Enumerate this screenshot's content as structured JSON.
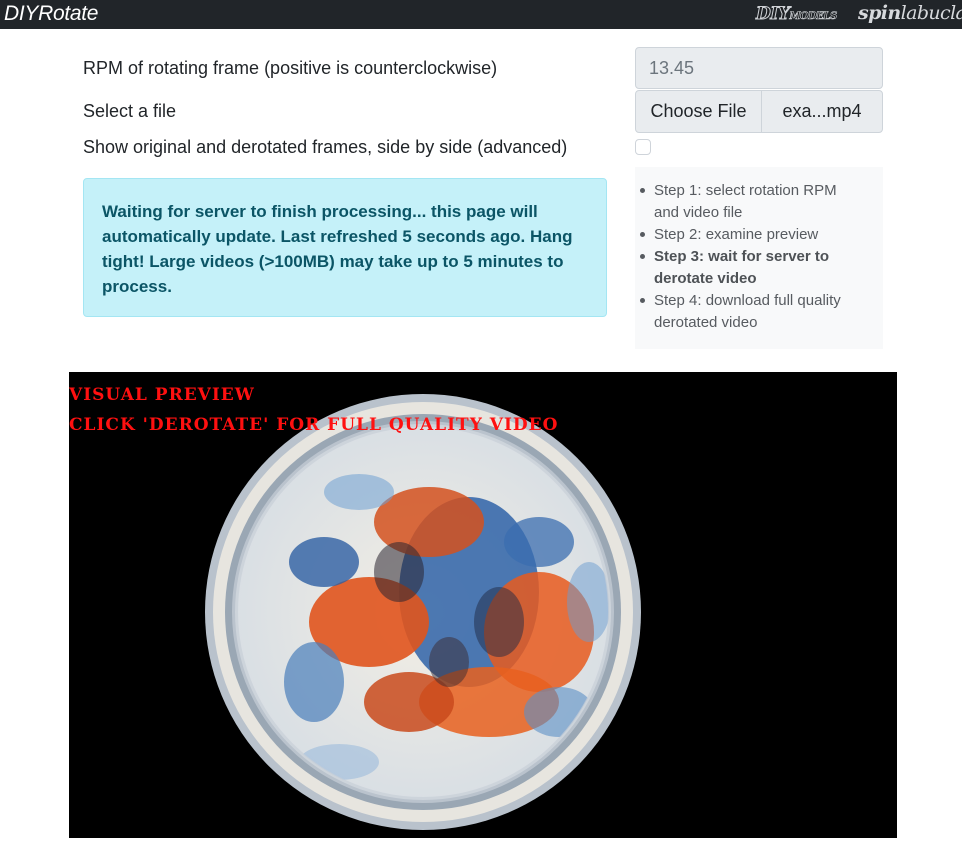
{
  "header": {
    "brand": "DIYRotate",
    "logo_diy_main": "DIY",
    "logo_diy_small": "MODELS",
    "logo_spinlab_a": "spin",
    "logo_spinlab_b": "lab",
    "logo_spinlab_c": "ucla"
  },
  "form": {
    "rpm_label": "RPM of rotating frame (positive is counterclockwise)",
    "rpm_value": "13.45",
    "file_label": "Select a file",
    "file_button": "Choose File",
    "file_name": "exa...mp4",
    "side_by_side_label": "Show original and derotated frames, side by side (advanced)",
    "side_by_side_checked": false
  },
  "alert": {
    "message": "Waiting for server to finish processing... this page will automatically update. Last refreshed 5 seconds ago. Hang tight! Large videos (>100MB) may take up to 5 minutes to process."
  },
  "steps": [
    {
      "text": "Step 1: select rotation RPM and video file",
      "current": false
    },
    {
      "text": "Step 2: examine preview",
      "current": false
    },
    {
      "text": "Step 3: wait for server to derotate video",
      "current": true
    },
    {
      "text": "Step 4: download full quality derotated video",
      "current": false
    }
  ],
  "preview": {
    "overlay_line1": "VISUAL PREVIEW",
    "overlay_line2": "CLICK 'DEROTATE' FOR FULL QUALITY VIDEO"
  },
  "colors": {
    "topbar": "#212529",
    "alert_bg": "#c5f1f9",
    "alert_text": "#0b5566",
    "overlay_text": "#ff1010"
  }
}
